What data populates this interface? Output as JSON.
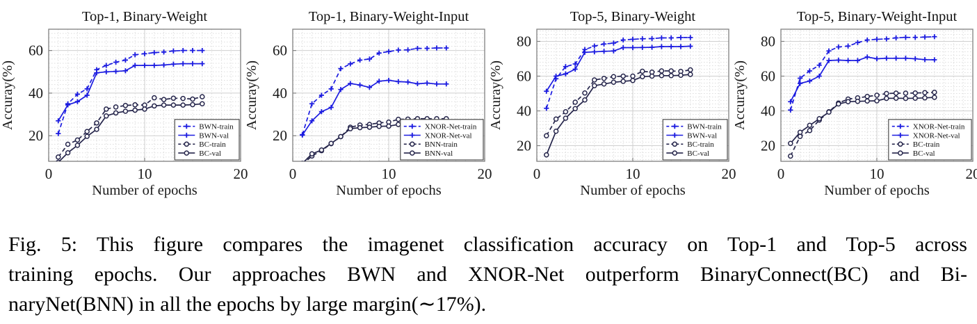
{
  "figure": {
    "caption": {
      "lines": [
        "Fig. 5: This figure compares the imagenet classification accuracy on Top-1 and Top-5 across",
        "training epochs. Our approaches BWN and XNOR-Net outperform BinaryConnect(BC) and Bi-",
        "naryNet(BNN) in all the epochs by large margin(∼17%)."
      ]
    }
  },
  "colors": {
    "series_blue": "#1b1be0",
    "series_dark": "#24244a",
    "grid_minor": "#dedede",
    "grid_major": "#cfcfcf",
    "axis_box": "#808080",
    "tick_text": "#1a1a1a",
    "legend_border": "#4d4d4d",
    "legend_bg": "#ffffff"
  },
  "chart_data": [
    {
      "type": "line",
      "title": "Top-1, Binary-Weight",
      "xlabel": "Number of epochs",
      "ylabel": "Accuray(%)",
      "xlim": [
        0,
        20
      ],
      "ylim": [
        8,
        70
      ],
      "xticks": [
        0,
        10,
        20
      ],
      "yticks": [
        20,
        40,
        60
      ],
      "grid": "on",
      "legend_position": "lower right",
      "x": [
        1,
        2,
        3,
        4,
        5,
        6,
        7,
        8,
        9,
        10,
        11,
        12,
        13,
        14,
        15,
        16
      ],
      "series": [
        {
          "name": "BWN-train",
          "color": "series_blue",
          "style": "dashed",
          "marker": "plus",
          "values": [
            21,
            35,
            39.5,
            42,
            51,
            53,
            54.5,
            55.5,
            58,
            58.5,
            59,
            59.3,
            59.8,
            60,
            60,
            60
          ]
        },
        {
          "name": "BWN-val",
          "color": "series_blue",
          "style": "solid",
          "marker": "plus",
          "values": [
            27,
            34.5,
            36,
            39,
            49.5,
            50,
            50.2,
            50.5,
            53,
            53,
            53,
            53.2,
            53.6,
            53.8,
            53.8,
            53.8
          ]
        },
        {
          "name": "BC-train",
          "color": "series_dark",
          "style": "dashed",
          "marker": "circle",
          "values": [
            10,
            16,
            18,
            22,
            26,
            32.5,
            33.5,
            34.2,
            34.5,
            34.4,
            37.8,
            37,
            37.6,
            37.5,
            37.2,
            38.3
          ]
        },
        {
          "name": "BC-val",
          "color": "series_dark",
          "style": "solid",
          "marker": "circle",
          "values": [
            7.5,
            12,
            15.5,
            19.7,
            23,
            29.3,
            30.7,
            31.5,
            32,
            32.5,
            34,
            34.4,
            34.4,
            34.4,
            34.6,
            35
          ]
        }
      ]
    },
    {
      "type": "line",
      "title": "Top-1, Binary-Weight-Input",
      "xlabel": "Number of epochs",
      "ylabel": "Accuray(%)",
      "xlim": [
        0,
        20
      ],
      "ylim": [
        8,
        70
      ],
      "xticks": [
        0,
        10,
        20
      ],
      "yticks": [
        20,
        40,
        60
      ],
      "grid": "on",
      "legend_position": "lower right",
      "x": [
        1,
        2,
        3,
        4,
        5,
        6,
        7,
        8,
        9,
        10,
        11,
        12,
        13,
        14,
        15,
        16
      ],
      "series": [
        {
          "name": "XNOR-Net-train",
          "color": "series_blue",
          "style": "dashed",
          "marker": "plus",
          "values": [
            20.5,
            35,
            39,
            42,
            51.5,
            53.7,
            55.5,
            56,
            58.8,
            59.5,
            60.2,
            60.3,
            61,
            61,
            61.2,
            61.2
          ]
        },
        {
          "name": "XNOR-Net-val",
          "color": "series_blue",
          "style": "solid",
          "marker": "plus",
          "values": [
            20.3,
            27,
            31.3,
            33.3,
            41.7,
            44.5,
            43.8,
            42.7,
            45.6,
            46,
            45.4,
            45.2,
            44.4,
            44.7,
            44.3,
            44.3
          ]
        },
        {
          "name": "BNN-train",
          "color": "series_dark",
          "style": "dashed",
          "marker": "circle",
          "values": [
            6.5,
            10.5,
            13,
            16.3,
            19.6,
            24,
            25,
            25.3,
            26,
            26.4,
            27.7,
            27.8,
            28,
            28,
            28,
            28
          ]
        },
        {
          "name": "BNN-val",
          "color": "series_dark",
          "style": "solid",
          "marker": "circle",
          "values": [
            7,
            11.5,
            13.3,
            16.4,
            19.6,
            23.3,
            23.8,
            24,
            24.4,
            24.5,
            25.3,
            25.6,
            25.6,
            25.7,
            25.7,
            25.7
          ]
        }
      ]
    },
    {
      "type": "line",
      "title": "Top-5, Binary-Weight",
      "xlabel": "Number of epochs",
      "ylabel": "Accuray(%)",
      "xlim": [
        0,
        20
      ],
      "ylim": [
        11,
        87
      ],
      "xticks": [
        0,
        10,
        20
      ],
      "yticks": [
        20,
        40,
        60,
        80
      ],
      "grid": "on",
      "legend_position": "lower right",
      "x": [
        1,
        2,
        3,
        4,
        5,
        6,
        7,
        8,
        9,
        10,
        11,
        12,
        13,
        14,
        15,
        16
      ],
      "series": [
        {
          "name": "BWN-train",
          "color": "series_blue",
          "style": "dashed",
          "marker": "plus",
          "values": [
            41.5,
            58.5,
            65.5,
            67,
            75.3,
            77.3,
            78.5,
            79,
            80.8,
            81.2,
            81.5,
            81.6,
            82,
            82,
            82.2,
            82.2
          ]
        },
        {
          "name": "BWN-val",
          "color": "series_blue",
          "style": "solid",
          "marker": "plus",
          "values": [
            51.3,
            60,
            61.3,
            64,
            73.7,
            74,
            74.3,
            74.5,
            76.4,
            76.4,
            76.5,
            76.6,
            77,
            77,
            77,
            77.2
          ]
        },
        {
          "name": "BC-train",
          "color": "series_dark",
          "style": "dashed",
          "marker": "circle",
          "values": [
            25.7,
            35.3,
            39.5,
            45,
            50.3,
            57.8,
            58.7,
            59.7,
            60,
            60,
            62.8,
            62.3,
            63,
            63,
            62.7,
            63.6
          ]
        },
        {
          "name": "BC-val",
          "color": "series_dark",
          "style": "solid",
          "marker": "circle",
          "values": [
            14.7,
            28.3,
            35.8,
            41.3,
            46.3,
            54.5,
            55.5,
            56.5,
            57,
            57.5,
            59.7,
            60,
            60.3,
            60.3,
            60.5,
            61
          ]
        }
      ]
    },
    {
      "type": "line",
      "title": "Top-5, Binary-Weight-Input",
      "xlabel": "Number of epochs",
      "ylabel": "Accuray(%)",
      "xlim": [
        0,
        20
      ],
      "ylim": [
        11,
        87
      ],
      "xticks": [
        0,
        10,
        20
      ],
      "yticks": [
        20,
        40,
        60,
        80
      ],
      "grid": "on",
      "legend_position": "lower right",
      "x": [
        1,
        2,
        3,
        4,
        5,
        6,
        7,
        8,
        9,
        10,
        11,
        12,
        13,
        14,
        15,
        16
      ],
      "series": [
        {
          "name": "XNOR-Net-train",
          "color": "series_blue",
          "style": "dashed",
          "marker": "plus",
          "values": [
            40.5,
            58.8,
            63,
            66.3,
            74.5,
            76.8,
            77.3,
            79.3,
            80.8,
            81.2,
            81.4,
            82,
            82.3,
            82.3,
            82.5,
            82.7
          ]
        },
        {
          "name": "XNOR-Net-val",
          "color": "series_blue",
          "style": "solid",
          "marker": "plus",
          "values": [
            45.3,
            55.8,
            57.2,
            60,
            69,
            69.2,
            69,
            69,
            71,
            70,
            70.3,
            70.3,
            70.3,
            70,
            69.5,
            69.4
          ]
        },
        {
          "name": "BC-train",
          "color": "series_dark",
          "style": "dashed",
          "marker": "circle",
          "values": [
            14,
            25.3,
            28.7,
            34.7,
            39.5,
            44.5,
            46.8,
            47.5,
            48.3,
            49,
            50,
            50.2,
            50.2,
            50.3,
            50.5,
            50.7
          ]
        },
        {
          "name": "BC-val",
          "color": "series_dark",
          "style": "solid",
          "marker": "circle",
          "values": [
            21.3,
            27.7,
            31.7,
            35.5,
            39.3,
            44,
            45.3,
            45.5,
            45.7,
            45.8,
            47.2,
            47.3,
            47.2,
            47.3,
            47.5,
            47.8
          ]
        }
      ]
    }
  ]
}
